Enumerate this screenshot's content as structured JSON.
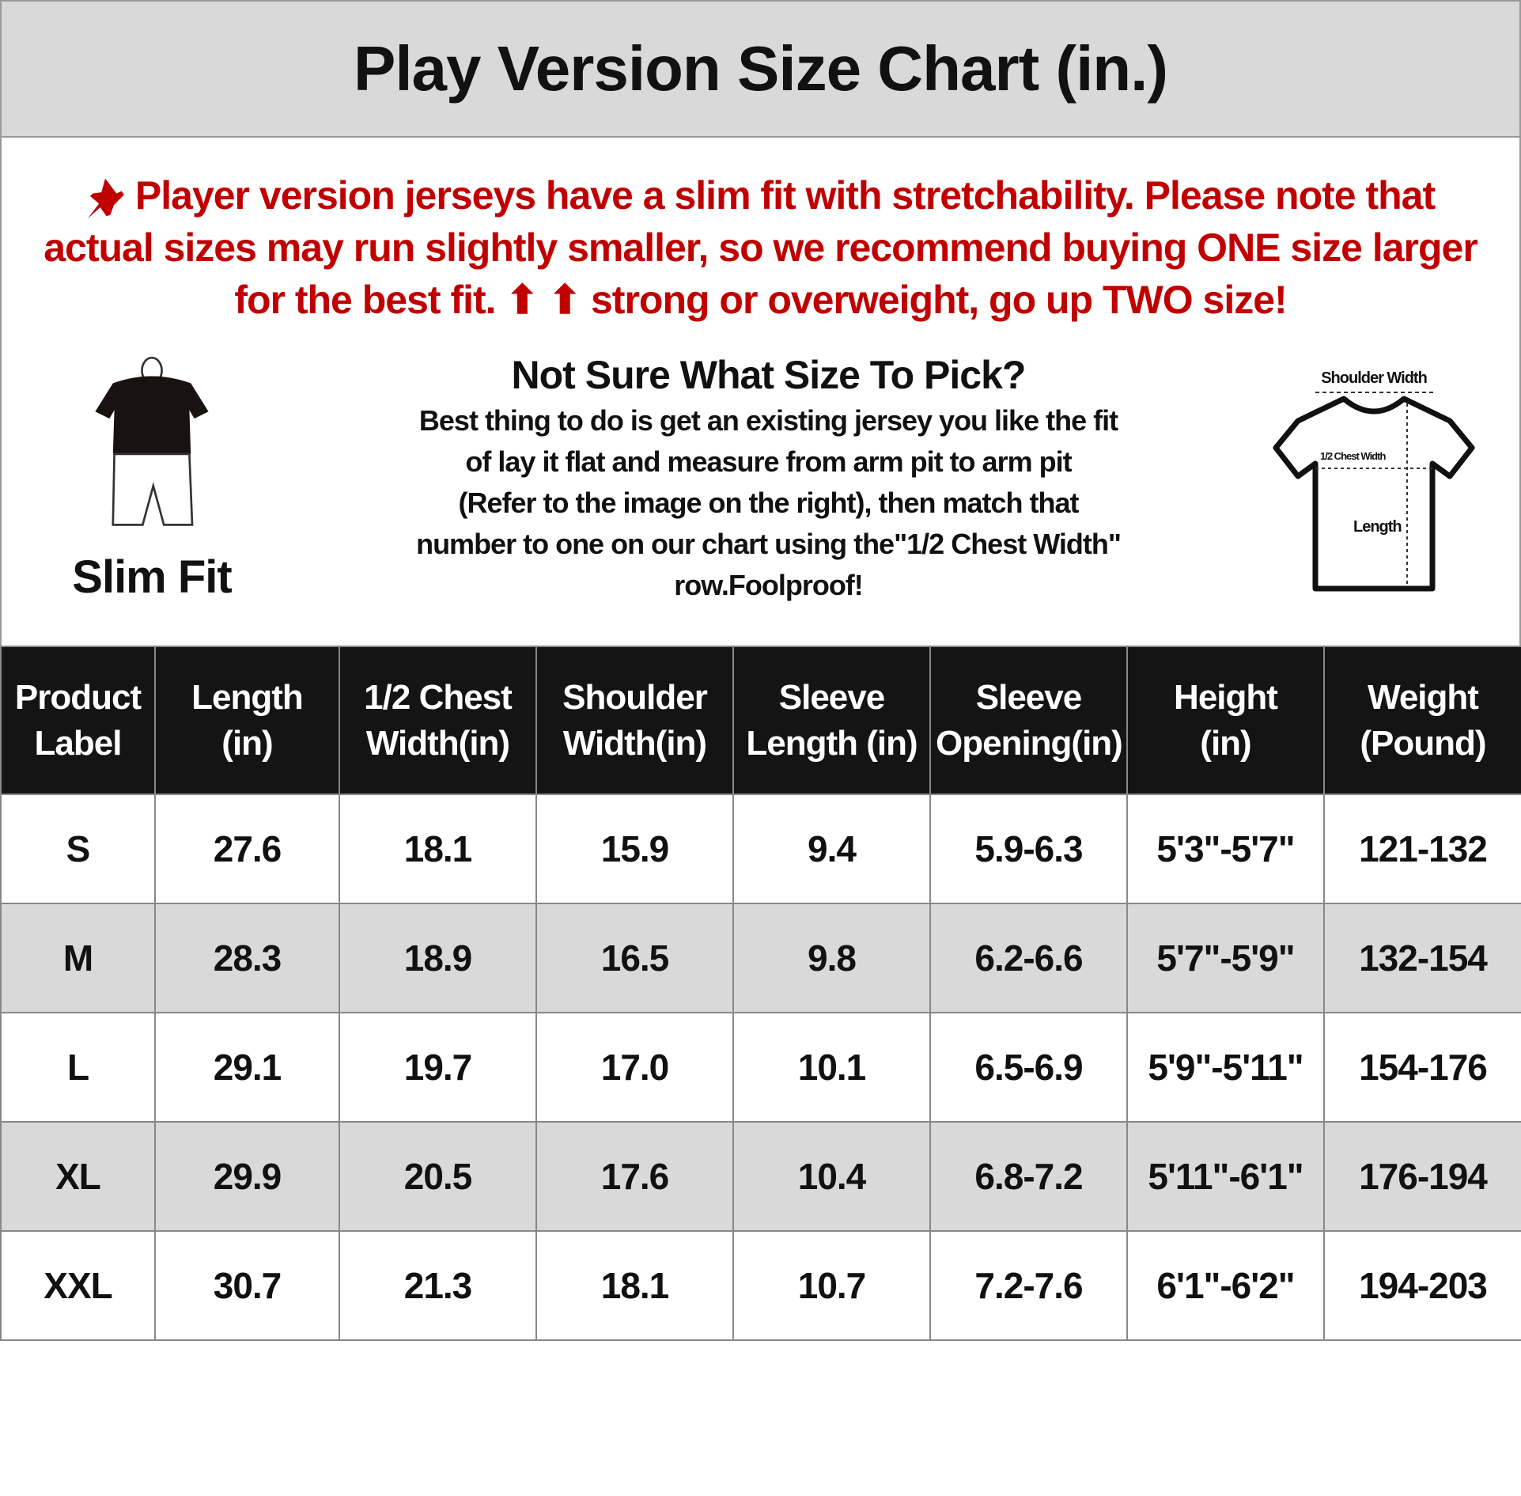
{
  "title": "Play Version Size Chart (in.)",
  "notice": {
    "icon": "pushpin-icon",
    "color": "#c00000",
    "lines": [
      "Player version jerseys have a slim fit with stretchability. Please note that",
      "actual sizes may run slightly smaller, so we recommend buying ONE size larger",
      "for the best fit. ⬆ ⬆ strong or overweight, go up TWO size!"
    ]
  },
  "fit": {
    "label": "Slim Fit",
    "icon": "mannequin-icon"
  },
  "help": {
    "heading": "Not Sure What Size To Pick?",
    "lines": [
      "Best thing to do is get an existing jersey you like the fit",
      "of lay it flat and measure from arm pit to arm pit",
      "(Refer to the image on the right), then match that",
      "number to one on our chart using the\"1/2 Chest Width\"",
      "row.Foolproof!"
    ]
  },
  "diagram": {
    "icon": "tshirt-measure-icon",
    "shoulder": "Shoulder Width",
    "chest": "1/2 Chest Width",
    "length": "Length"
  },
  "table": {
    "headers": [
      [
        "Product",
        "Label"
      ],
      [
        "Length",
        "(in)"
      ],
      [
        "1/2 Chest",
        "Width(in)"
      ],
      [
        "Shoulder",
        "Width(in)"
      ],
      [
        "Sleeve",
        "Length (in)"
      ],
      [
        "Sleeve",
        "Opening(in)"
      ],
      [
        "Height",
        "(in)"
      ],
      [
        "Weight",
        "(Pound)"
      ]
    ],
    "rows": [
      [
        "S",
        "27.6",
        "18.1",
        "15.9",
        "9.4",
        "5.9-6.3",
        "5'3\"-5'7\"",
        "121-132"
      ],
      [
        "M",
        "28.3",
        "18.9",
        "16.5",
        "9.8",
        "6.2-6.6",
        "5'7\"-5'9\"",
        "132-154"
      ],
      [
        "L",
        "29.1",
        "19.7",
        "17.0",
        "10.1",
        "6.5-6.9",
        "5'9\"-5'11\"",
        "154-176"
      ],
      [
        "XL",
        "29.9",
        "20.5",
        "17.6",
        "10.4",
        "6.8-7.2",
        "5'11\"-6'1\"",
        "176-194"
      ],
      [
        "XXL",
        "30.7",
        "21.3",
        "18.1",
        "10.7",
        "7.2-7.6",
        "6'1\"-6'2\"",
        "194-203"
      ]
    ]
  }
}
